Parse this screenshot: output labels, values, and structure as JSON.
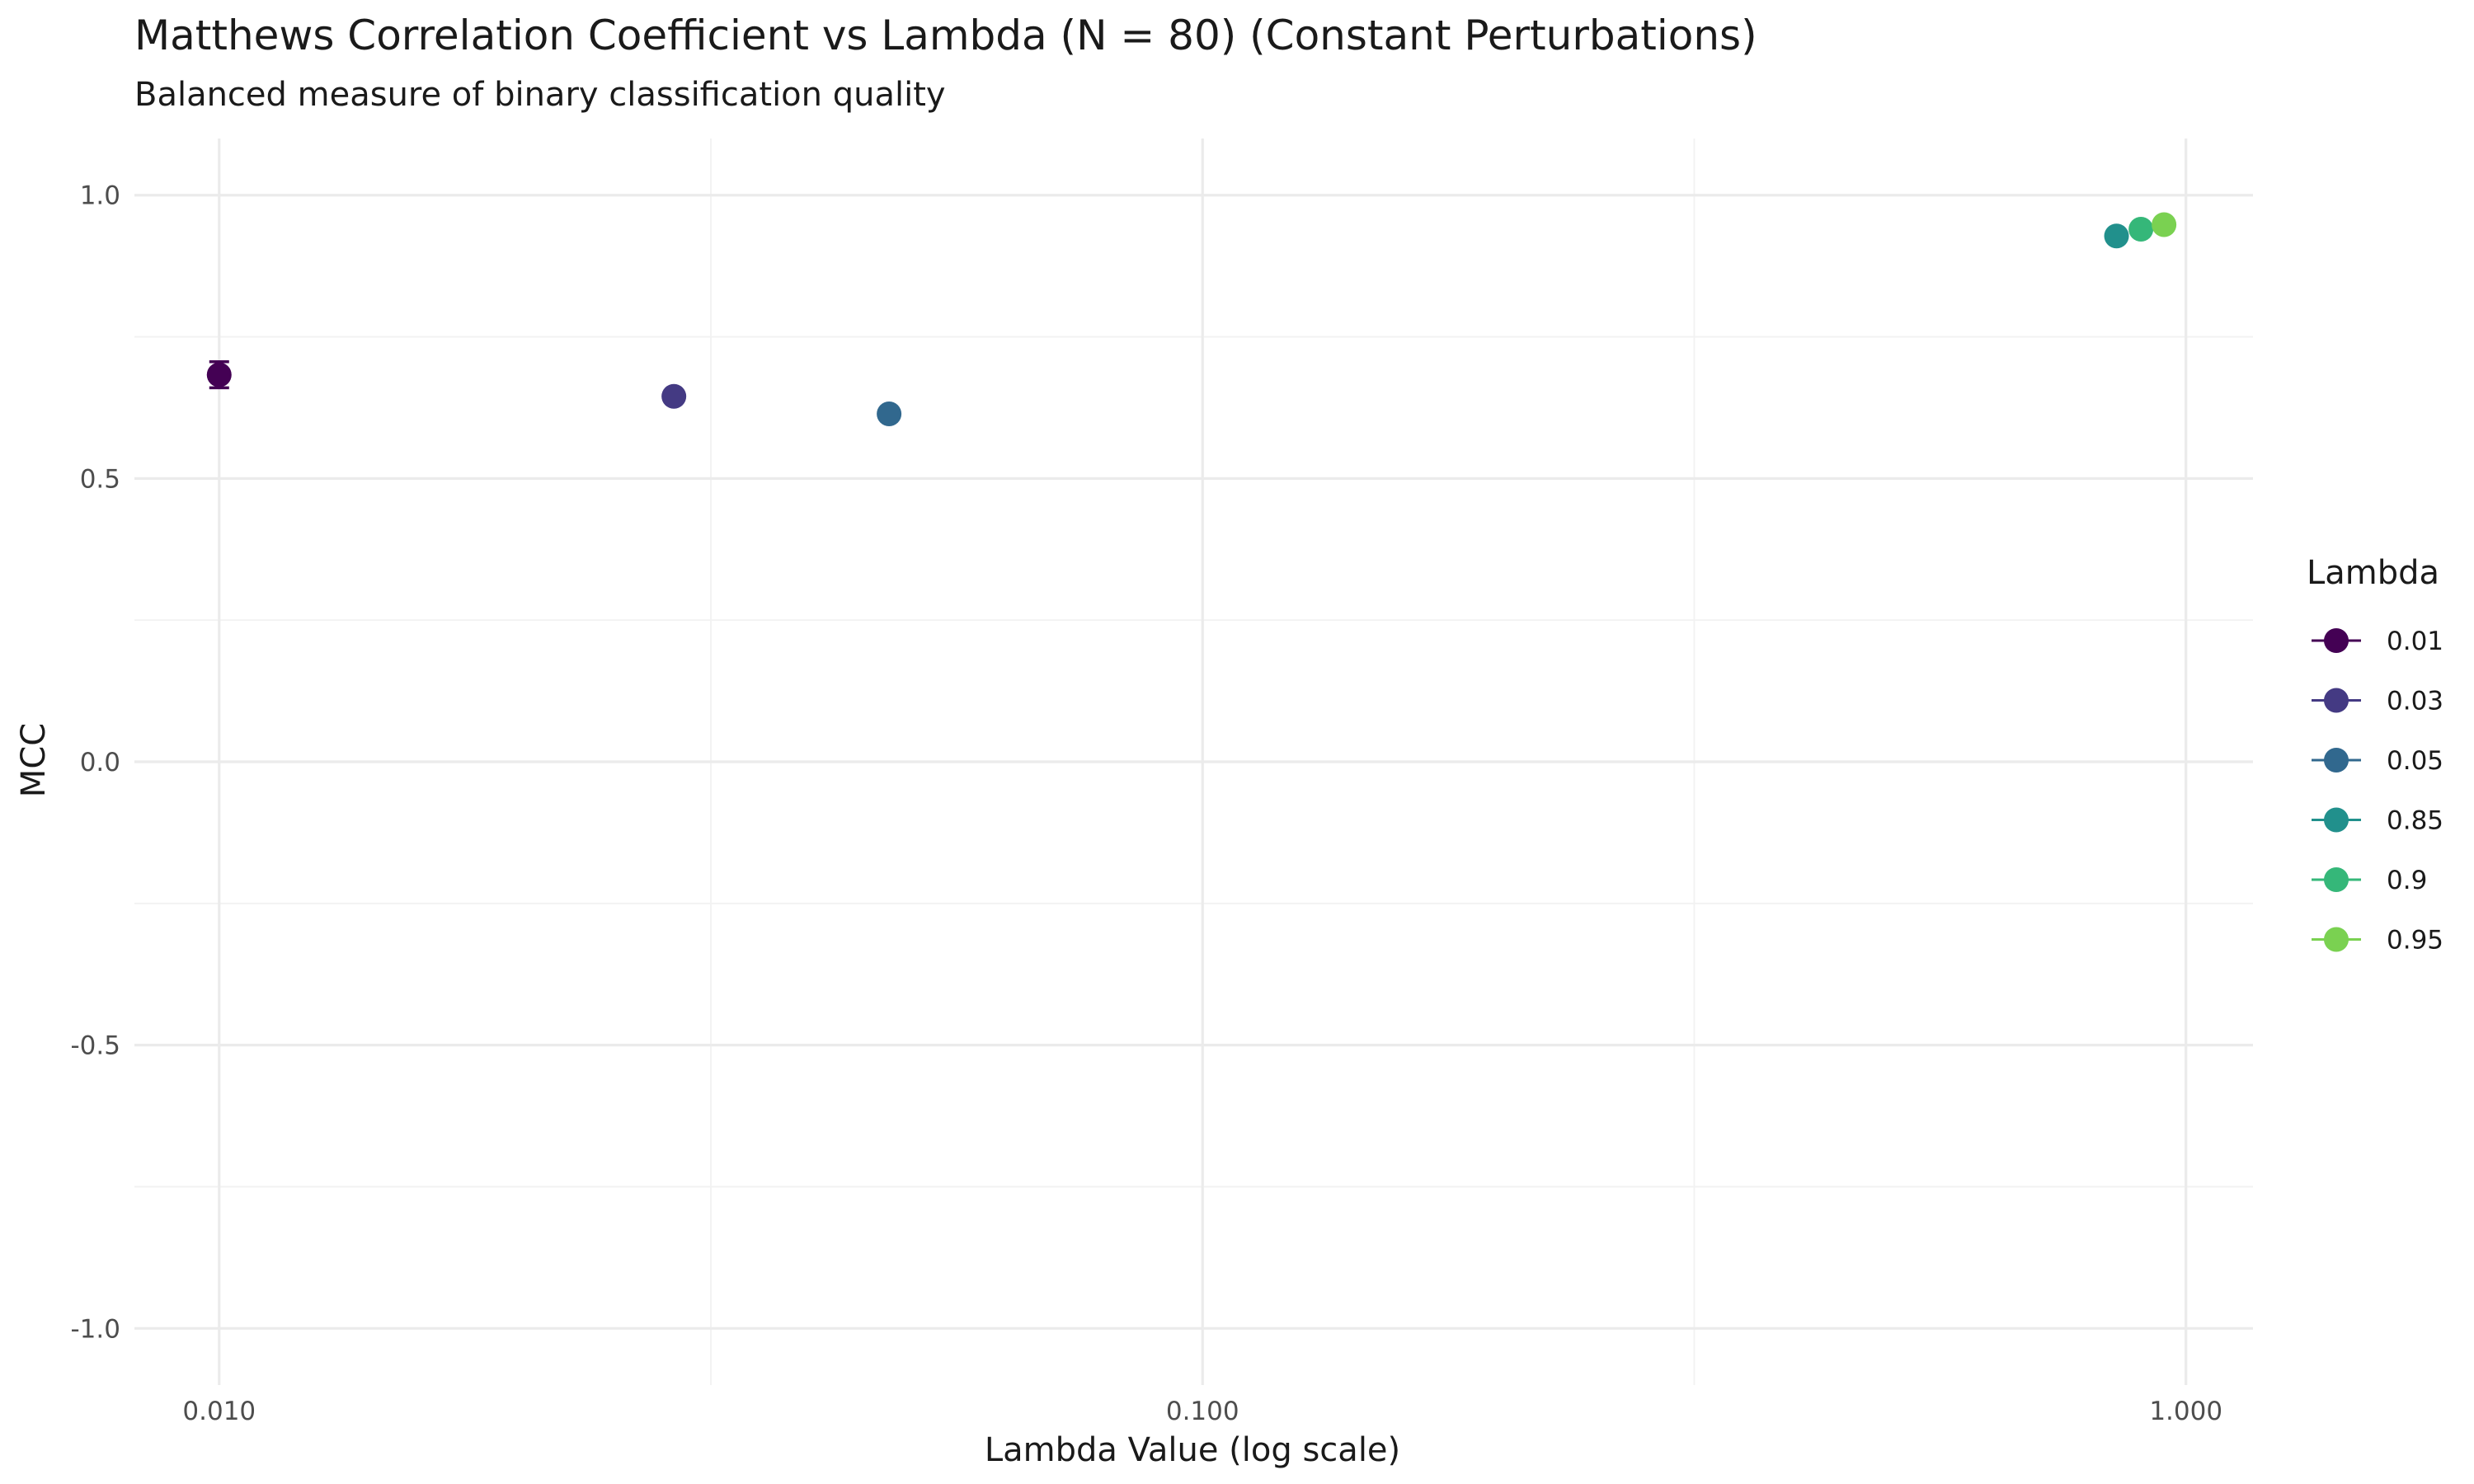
{
  "chart_data": {
    "type": "scatter",
    "title": "Matthews Correlation Coefficient vs Lambda (N = 80) (Constant Perturbations)",
    "subtitle": "Balanced measure of binary classification quality",
    "xlabel": "Lambda Value (log scale)",
    "ylabel": "MCC",
    "x_scale": "log10",
    "xlim": [
      0.0082,
      1.17
    ],
    "ylim": [
      -1.1,
      1.1
    ],
    "x_ticks": [
      0.01,
      0.1,
      1
    ],
    "x_tick_labels": [
      "0.010",
      "0.100",
      "1.000"
    ],
    "y_ticks": [
      -1,
      -0.5,
      0,
      0.5,
      1
    ],
    "y_tick_labels": [
      "-1.0",
      "-0.5",
      "0.0",
      "0.5",
      "1.0"
    ],
    "grid": true,
    "legend": {
      "title": "Lambda",
      "placement": "right",
      "entries": [
        "0.01",
        "0.03",
        "0.05",
        "0.85",
        "0.9",
        "0.95"
      ]
    },
    "colors": [
      "#440154",
      "#443a83",
      "#31688e",
      "#21908c",
      "#35b779",
      "#7ad151"
    ],
    "series": [
      {
        "name": "0.01",
        "x": 0.01,
        "y": 0.683,
        "error": [
          0.66,
          0.706
        ]
      },
      {
        "name": "0.03",
        "x": 0.029,
        "y": 0.645,
        "error": null
      },
      {
        "name": "0.05",
        "x": 0.048,
        "y": 0.614,
        "error": null
      },
      {
        "name": "0.85",
        "x": 0.85,
        "y": 0.928,
        "error": null
      },
      {
        "name": "0.9",
        "x": 0.9,
        "y": 0.94,
        "error": null
      },
      {
        "name": "0.95",
        "x": 0.95,
        "y": 0.948,
        "error": null
      }
    ]
  }
}
